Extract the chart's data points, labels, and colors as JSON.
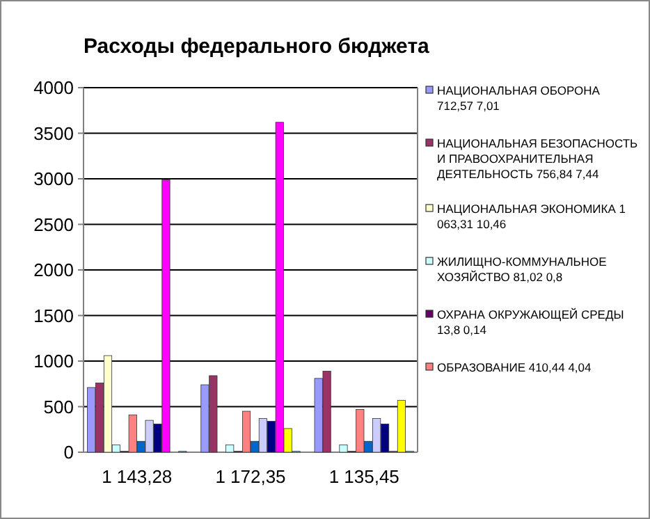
{
  "chart_data": {
    "type": "bar",
    "title": "Расходы федерального бюджета",
    "categories": [
      "1 143,28",
      "1 172,35",
      "1 135,45"
    ],
    "series": [
      {
        "name": "НАЦИОНАЛЬНАЯ ОБОРОНА 712,57 7,01",
        "color": "#9999ff",
        "values": [
          710,
          740,
          810
        ]
      },
      {
        "name": "НАЦИОНАЛЬНАЯ БЕЗОПАСНОСТЬ И ПРАВООХРАНИТЕЛЬНАЯ ДЕЯТЕЛЬНОСТЬ 756,84 7,44",
        "color": "#993366",
        "values": [
          760,
          840,
          890
        ]
      },
      {
        "name": "НАЦИОНАЛЬНАЯ ЭКОНОМИКА 1 063,31 10,46",
        "color": "#ffffcc",
        "values": [
          1060,
          0,
          0
        ]
      },
      {
        "name": "ЖИЛИЩНО-КОММУНАЛЬНОЕ ХОЗЯЙСТВО 81,02 0,8",
        "color": "#ccffff",
        "values": [
          80,
          80,
          80
        ]
      },
      {
        "name": "ОХРАНА ОКРУЖАЮЩЕЙ СРЕДЫ 13,8 0,14",
        "color": "#660066",
        "values": [
          10,
          10,
          10
        ]
      },
      {
        "name": "ОБРАЗОВАНИЕ 410,44 4,04",
        "color": "#ff8080",
        "values": [
          410,
          450,
          470
        ]
      },
      {
        "color": "#0066cc",
        "values": [
          120,
          120,
          120
        ]
      },
      {
        "color": "#ccccff",
        "values": [
          350,
          370,
          370
        ]
      },
      {
        "color": "#000080",
        "values": [
          310,
          340,
          310
        ]
      },
      {
        "color": "#ff00ff",
        "values": [
          2990,
          3620,
          10
        ]
      },
      {
        "color": "#ffff00",
        "values": [
          0,
          260,
          570
        ]
      },
      {
        "color": "#00ffff",
        "values": [
          10,
          10,
          10
        ]
      }
    ],
    "ylim": [
      0,
      4000
    ],
    "yticks": [
      0,
      500,
      1000,
      1500,
      2000,
      2500,
      3000,
      3500,
      4000
    ],
    "grid": "y",
    "legend": "right"
  }
}
